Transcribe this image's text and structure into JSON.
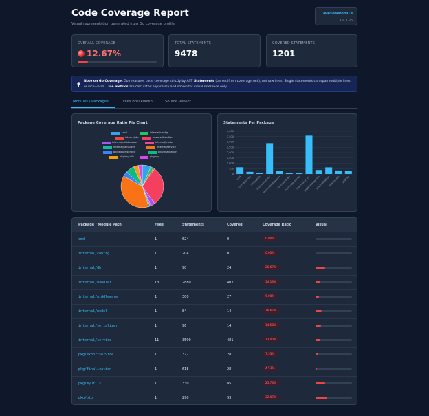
{
  "header": {
    "title": "Code Coverage Report",
    "subtitle": "Visual representation generated from Go coverage profile"
  },
  "module": {
    "name": "awesomemodule",
    "go_version": "Go 1.25"
  },
  "stats": {
    "overall": {
      "label": "Overall Coverage",
      "value": "12.67%",
      "percent": 12.67
    },
    "total": {
      "label": "Total Statements",
      "value": "9478"
    },
    "covered": {
      "label": "Covered Statements",
      "value": "1201"
    }
  },
  "note": {
    "title": "Note on Go Coverage:",
    "text1": "Go measures code coverage strictly by AST",
    "bold1": "Statements",
    "text2": "(parsed from",
    "code": "coverage.out",
    "text3": "), not raw lines. Single statements can span multiple lines or vice-versa.",
    "bold2": "Line metrics",
    "text4": "are calculated separately and shown for visual reference only."
  },
  "tabs": [
    "Modules / Packages",
    "Files Breakdown",
    "Source Viewer"
  ],
  "pie_panel_title": "Package Coverage Ratio Pie Chart",
  "bar_panel_title": "Statements Per Package",
  "colors": {
    "accent": "#38bdf8",
    "danger": "#ef4444",
    "bar": "#38bdf8"
  },
  "chart_data": [
    {
      "type": "pie",
      "categories": [
        "cmd",
        "internal/config",
        "internal/db",
        "internal/handler",
        "internal/middleware",
        "internal/model",
        "internal/serializer",
        "internal/service",
        "pkg/exportservice",
        "pkg/finalization",
        "pkg/myutils",
        "pkg/otp"
      ],
      "values": [
        624,
        204,
        90,
        2880,
        300,
        84,
        96,
        3590,
        372,
        618,
        330,
        290
      ],
      "colors": [
        "#36a2eb",
        "#22c55e",
        "#ef4444",
        "#f43f5e",
        "#a855f7",
        "#ec4899",
        "#14b8a6",
        "#f97316",
        "#3b82f6",
        "#10b981",
        "#f59e0b",
        "#d946ef"
      ],
      "legend": "top"
    },
    {
      "type": "bar",
      "categories": [
        "cmd",
        "internal/config",
        "internal/db",
        "internal/handler",
        "internal/middleware",
        "internal/model",
        "internal/serializer",
        "internal/service",
        "pkg/exportservice",
        "pkg/finalization",
        "pkg/myutils",
        "pkg/otp"
      ],
      "values": [
        624,
        204,
        90,
        2880,
        300,
        84,
        96,
        3590,
        372,
        618,
        330,
        290
      ],
      "yticks": [
        "0",
        "500",
        "1,000",
        "1,500",
        "2,000",
        "2,500",
        "3,000",
        "3,500",
        "4,000"
      ],
      "ylim": [
        0,
        4000
      ]
    }
  ],
  "table": {
    "headers": [
      "Package / Module Path",
      "Files",
      "Statements",
      "Covered",
      "Coverage Ratio",
      "Visual"
    ],
    "rows": [
      {
        "path": "cmd",
        "files": "1",
        "statements": "624",
        "covered": "0",
        "ratio": "0.00%",
        "pct": 0.0
      },
      {
        "path": "internal/config",
        "files": "1",
        "statements": "204",
        "covered": "0",
        "ratio": "0.00%",
        "pct": 0.0
      },
      {
        "path": "internal/db",
        "files": "1",
        "statements": "90",
        "covered": "24",
        "ratio": "26.67%",
        "pct": 26.67
      },
      {
        "path": "internal/handler",
        "files": "13",
        "statements": "2880",
        "covered": "407",
        "ratio": "14.13%",
        "pct": 14.13
      },
      {
        "path": "internal/middleware",
        "files": "1",
        "statements": "300",
        "covered": "27",
        "ratio": "9.00%",
        "pct": 9.0
      },
      {
        "path": "internal/model",
        "files": "1",
        "statements": "84",
        "covered": "14",
        "ratio": "16.67%",
        "pct": 16.67
      },
      {
        "path": "internal/serializer",
        "files": "1",
        "statements": "96",
        "covered": "14",
        "ratio": "14.58%",
        "pct": 14.58
      },
      {
        "path": "internal/service",
        "files": "11",
        "statements": "3590",
        "covered": "481",
        "ratio": "13.40%",
        "pct": 13.4
      },
      {
        "path": "pkg/exportservice",
        "files": "1",
        "statements": "372",
        "covered": "28",
        "ratio": "7.53%",
        "pct": 7.53
      },
      {
        "path": "pkg/finalization",
        "files": "1",
        "statements": "618",
        "covered": "28",
        "ratio": "4.53%",
        "pct": 4.53
      },
      {
        "path": "pkg/myutils",
        "files": "1",
        "statements": "330",
        "covered": "85",
        "ratio": "25.76%",
        "pct": 25.76
      },
      {
        "path": "pkg/otp",
        "files": "1",
        "statements": "290",
        "covered": "93",
        "ratio": "32.07%",
        "pct": 32.07
      }
    ]
  }
}
